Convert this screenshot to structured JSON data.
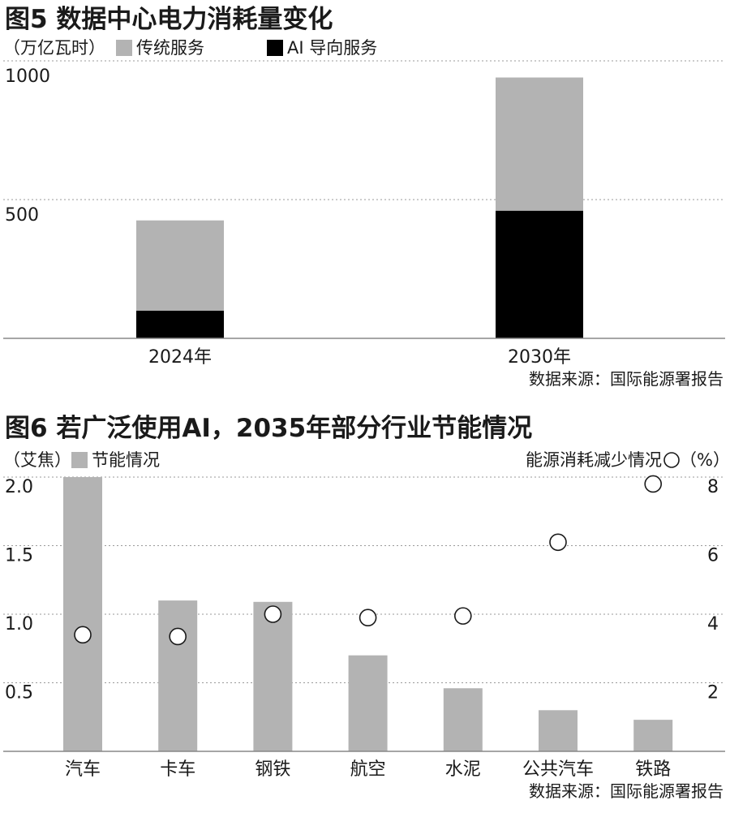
{
  "chart_data": [
    {
      "type": "bar",
      "stacked": true,
      "title": "图5 数据中心电力消耗量变化",
      "unit": "（万亿瓦时）",
      "categories": [
        "2024年",
        "2030年"
      ],
      "series": [
        {
          "name": "AI 导向服务",
          "values": [
            100,
            460
          ],
          "color": "#000000"
        },
        {
          "name": "传统服务",
          "values": [
            325,
            480
          ],
          "color": "#b3b3b3"
        }
      ],
      "legend_order": [
        1,
        0
      ],
      "yticks": [
        500,
        1000
      ],
      "ylim": [
        0,
        1000
      ],
      "grid": true,
      "source": "数据来源：国际能源署报告"
    },
    {
      "type": "bar",
      "title": "图6 若广泛使用AI，2035年部分行业节能情况",
      "left_unit": "（艾焦）",
      "right_unit": "能源消耗减少情况",
      "right_unit_suffix": "（%）",
      "categories": [
        "汽车",
        "卡车",
        "钢铁",
        "航空",
        "水泥",
        "公共汽车",
        "铁路"
      ],
      "series": [
        {
          "name": "节能情况",
          "values": [
            2.0,
            1.1,
            1.09,
            0.7,
            0.46,
            0.3,
            0.23
          ],
          "color": "#b3b3b3",
          "axis": "left"
        },
        {
          "name": "",
          "values": [
            3.4,
            3.35,
            4.0,
            3.9,
            3.95,
            6.1,
            7.8
          ],
          "axis": "right",
          "marker": "circle"
        }
      ],
      "yticks_left": [
        0.5,
        1.0,
        1.5,
        2.0
      ],
      "ytick_labels_left": [
        "0.5",
        "1.0",
        "1.5",
        "2.0"
      ],
      "ylim_left": [
        0,
        2.0
      ],
      "yticks_right": [
        2,
        4,
        6,
        8
      ],
      "ylim_right": [
        0,
        8
      ],
      "grid": true,
      "source": "数据来源：国际能源署报告"
    }
  ]
}
